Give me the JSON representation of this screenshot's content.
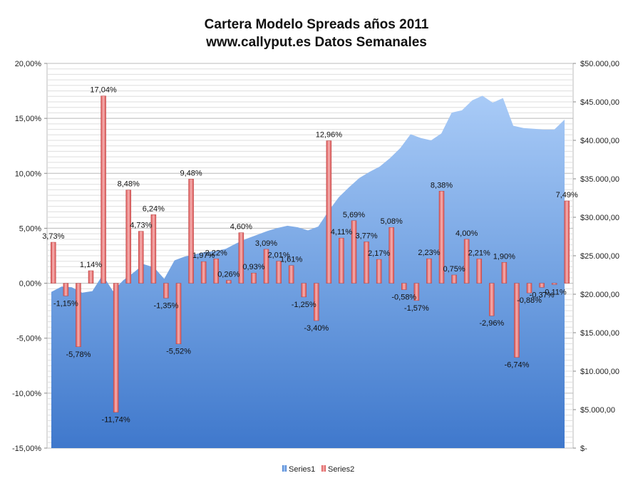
{
  "chart_data": {
    "type": "bar",
    "title": "Cartera Modelo Spreads años 2011",
    "subtitle": "www.callyput.es Datos Semanales",
    "y_left": {
      "ticks": [
        "20,00%",
        "15,00%",
        "10,00%",
        "5,00%",
        "0,00%",
        "-5,00%",
        "-10,00%",
        "-15,00%"
      ],
      "ylim": [
        -15,
        20
      ]
    },
    "y_right": {
      "ticks": [
        "$50.000,00",
        "$45.000,00",
        "$40.000,00",
        "$35.000,00",
        "$30.000,00",
        "$25.000,00",
        "$20.000,00",
        "$15.000,00",
        "$10.000,00",
        "$5.000,00",
        "$-"
      ],
      "ylim": [
        0,
        50000
      ]
    },
    "grid": true,
    "legend_position": "bottom",
    "series": [
      {
        "name": "Series1",
        "type": "area",
        "axis": "right",
        "color": "#5b8fd6",
        "values": [
          20300,
          21000,
          20900,
          20200,
          20400,
          22500,
          20400,
          21800,
          22800,
          23900,
          23500,
          22000,
          24400,
          24900,
          25200,
          25500,
          25600,
          25900,
          26600,
          27200,
          27700,
          28200,
          28600,
          28900,
          28700,
          28300,
          28800,
          30800,
          32600,
          33900,
          35100,
          35900,
          36600,
          37700,
          39000,
          40800,
          40300,
          40000,
          40900,
          43600,
          43900,
          45200,
          45800,
          44900,
          45500,
          41900,
          41600,
          41500,
          41400,
          41400,
          42700
        ]
      },
      {
        "name": "Series2",
        "type": "bar",
        "axis": "left",
        "color": "#e06666",
        "values": [
          3.73,
          -1.15,
          -5.78,
          1.14,
          17.04,
          -11.74,
          8.48,
          4.73,
          6.24,
          -1.35,
          -5.52,
          9.48,
          1.97,
          2.22,
          0.26,
          4.6,
          0.93,
          3.09,
          2.01,
          1.61,
          -1.25,
          -3.4,
          12.96,
          4.11,
          5.69,
          3.77,
          2.17,
          5.08,
          -0.58,
          -1.57,
          2.23,
          8.38,
          0.75,
          4.0,
          2.21,
          -2.96,
          1.9,
          -6.74,
          -0.88,
          -0.37,
          -0.11,
          7.49
        ],
        "labels": [
          "3,73%",
          "-1,15%",
          "-5,78%",
          "1,14%",
          "17,04%",
          "-11,74%",
          "8,48%",
          "4,73%",
          "6,24%",
          "-1,35%",
          "-5,52%",
          "9,48%",
          "1,97%",
          "2,22%",
          "0,26%",
          "4,60%",
          "0,93%",
          "3,09%",
          "2,01%",
          "1,61%",
          "-1,25%",
          "-3,40%",
          "12,96%",
          "4,11%",
          "5,69%",
          "3,77%",
          "2,17%",
          "5,08%",
          "-0,58%",
          "-1,57%",
          "2,23%",
          "8,38%",
          "0,75%",
          "4,00%",
          "2,21%",
          "-2,96%",
          "1,90%",
          "-6,74%",
          "-0,88%",
          "-0,37%",
          "-0,11%",
          "7,49%"
        ]
      }
    ]
  }
}
